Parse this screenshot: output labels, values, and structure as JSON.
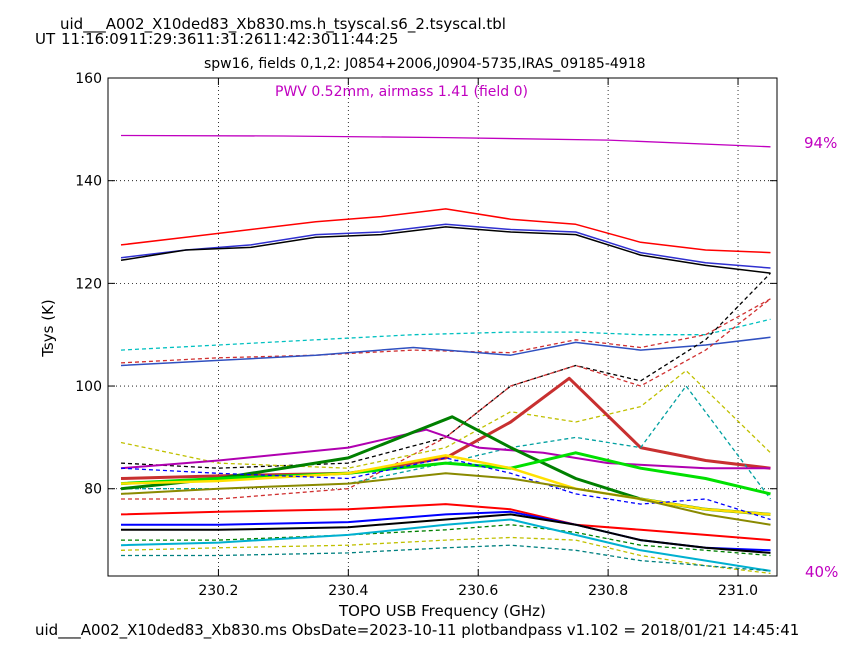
{
  "header": {
    "table_name": "uid___A002_X10ded83_Xb830.ms.h_tsyscal.s6_2.tsyscal.tbl",
    "ut_label": "UT",
    "ut_times": [
      "11:16:09",
      "11:29:36",
      "11:31:26",
      "11:42:30",
      "11:44:25"
    ]
  },
  "footer": {
    "text": "uid___A002_X10ded83_Xb830.ms  ObsDate=2023-10-11   plotbandpass v1.102 = 2018/01/21 14:45:41"
  },
  "chart_data": {
    "type": "line",
    "title": "spw16,  fields 0,1,2: J0854+2006,J0904-5735,IRAS_09185-4918",
    "annotation": "PWV 0.52mm, airmass 1.41 (field 0)",
    "xlabel": "TOPO USB Frequency (GHz)",
    "ylabel": "Tsys (K)",
    "xlim": [
      230.03,
      231.06
    ],
    "ylim": [
      63,
      160
    ],
    "x_ticks": [
      "230.2",
      "230.4",
      "230.6",
      "230.8",
      "231.0"
    ],
    "x_tick_values": [
      230.2,
      230.4,
      230.6,
      230.8,
      231.0
    ],
    "y_ticks": [
      "80",
      "100",
      "120",
      "140",
      "160"
    ],
    "y_tick_values": [
      80,
      100,
      120,
      140,
      160
    ],
    "grid": true,
    "transmission": {
      "color": "#c000c0",
      "top_label": "94%",
      "bottom_label": "40%",
      "x": [
        230.05,
        230.3,
        230.55,
        230.8,
        231.05
      ],
      "y": [
        148.8,
        148.7,
        148.4,
        147.9,
        146.6
      ]
    },
    "series": [
      {
        "color": "#ff0000",
        "style": "solid",
        "width": 1.5,
        "x": [
          230.05,
          230.15,
          230.25,
          230.35,
          230.45,
          230.55,
          230.65,
          230.75,
          230.85,
          230.95,
          231.05
        ],
        "y": [
          127.5,
          129.0,
          130.5,
          132.0,
          133.0,
          134.5,
          132.5,
          131.5,
          128.0,
          126.5,
          126.0
        ]
      },
      {
        "color": "#3030d0",
        "style": "solid",
        "width": 1.5,
        "x": [
          230.05,
          230.15,
          230.25,
          230.35,
          230.45,
          230.55,
          230.65,
          230.75,
          230.85,
          230.95,
          231.05
        ],
        "y": [
          125.0,
          126.5,
          127.5,
          129.5,
          130.0,
          131.5,
          130.5,
          130.0,
          126.0,
          124.0,
          123.0
        ]
      },
      {
        "color": "#000000",
        "style": "solid",
        "width": 1.5,
        "x": [
          230.05,
          230.15,
          230.25,
          230.35,
          230.45,
          230.55,
          230.65,
          230.75,
          230.85,
          230.95,
          231.05
        ],
        "y": [
          124.5,
          126.5,
          127.0,
          129.0,
          129.5,
          131.0,
          130.0,
          129.5,
          125.5,
          123.5,
          122.0
        ]
      },
      {
        "color": "#00c0c0",
        "style": "dashed",
        "width": 1.3,
        "x": [
          230.05,
          230.2,
          230.35,
          230.5,
          230.65,
          230.75,
          230.85,
          230.95,
          231.05
        ],
        "y": [
          107.0,
          108.0,
          109.0,
          110.0,
          110.5,
          110.5,
          110.0,
          110.0,
          113.0
        ]
      },
      {
        "color": "#d03030",
        "style": "dashed",
        "width": 1.3,
        "x": [
          230.05,
          230.2,
          230.35,
          230.5,
          230.65,
          230.75,
          230.85,
          230.95,
          231.05
        ],
        "y": [
          104.5,
          105.5,
          106.0,
          107.0,
          106.5,
          109.0,
          107.5,
          110.0,
          117.0
        ]
      },
      {
        "color": "#3050c0",
        "style": "solid",
        "width": 1.5,
        "x": [
          230.05,
          230.2,
          230.35,
          230.5,
          230.65,
          230.75,
          230.85,
          230.95,
          231.05
        ],
        "y": [
          104.0,
          105.0,
          106.0,
          107.5,
          106.0,
          108.5,
          107.0,
          108.0,
          109.5
        ]
      },
      {
        "color": "#000000",
        "style": "dashed",
        "width": 1.3,
        "x": [
          230.05,
          230.2,
          230.4,
          230.55,
          230.65,
          230.75,
          230.85,
          230.95,
          231.05
        ],
        "y": [
          85.0,
          84.0,
          85.0,
          90.0,
          100.0,
          104.0,
          101.0,
          109.0,
          122.0
        ]
      },
      {
        "color": "#d03030",
        "style": "dashed",
        "width": 1.3,
        "x": [
          230.05,
          230.2,
          230.4,
          230.55,
          230.65,
          230.75,
          230.85,
          230.95,
          231.05
        ],
        "y": [
          78.0,
          78.0,
          80.0,
          90.0,
          100.0,
          104.0,
          100.0,
          107.0,
          117.0
        ]
      },
      {
        "color": "#c0c000",
        "style": "dashed",
        "width": 1.3,
        "x": [
          230.05,
          230.2,
          230.4,
          230.55,
          230.65,
          230.75,
          230.85,
          230.92,
          231.05
        ],
        "y": [
          89.0,
          85.0,
          84.0,
          88.0,
          95.0,
          93.0,
          96.0,
          103.0,
          87.0
        ]
      },
      {
        "color": "#c83030",
        "style": "solid",
        "width": 3.0,
        "x": [
          230.05,
          230.2,
          230.4,
          230.55,
          230.65,
          230.74,
          230.85,
          230.95,
          231.05
        ],
        "y": [
          82.0,
          82.5,
          83.0,
          86.0,
          93.0,
          101.5,
          88.0,
          85.5,
          84.0
        ]
      },
      {
        "color": "#00a0a0",
        "style": "dashed",
        "width": 1.3,
        "x": [
          230.05,
          230.2,
          230.4,
          230.55,
          230.65,
          230.75,
          230.85,
          230.92,
          231.05
        ],
        "y": [
          80.0,
          80.0,
          81.0,
          85.0,
          88.0,
          90.0,
          88.0,
          100.0,
          78.0
        ]
      },
      {
        "color": "#b000b0",
        "style": "solid",
        "width": 2.0,
        "x": [
          230.05,
          230.2,
          230.4,
          230.52,
          230.6,
          230.7,
          230.8,
          230.95,
          231.05
        ],
        "y": [
          84.0,
          85.5,
          88.0,
          91.5,
          88.0,
          87.0,
          85.0,
          84.0,
          84.0
        ]
      },
      {
        "color": "#008000",
        "style": "solid",
        "width": 3.0,
        "x": [
          230.05,
          230.2,
          230.4,
          230.56,
          230.65,
          230.75,
          230.85,
          230.95,
          231.05
        ],
        "y": [
          80.0,
          82.0,
          86.0,
          94.0,
          88.0,
          82.0,
          78.0,
          76.0,
          75.0
        ]
      },
      {
        "color": "#00e000",
        "style": "solid",
        "width": 3.0,
        "x": [
          230.05,
          230.2,
          230.4,
          230.55,
          230.65,
          230.75,
          230.85,
          230.95,
          231.05
        ],
        "y": [
          81.0,
          82.0,
          83.0,
          85.0,
          84.0,
          87.0,
          84.0,
          82.0,
          79.0
        ]
      },
      {
        "color": "#ffe000",
        "style": "solid",
        "width": 2.5,
        "x": [
          230.05,
          230.2,
          230.4,
          230.55,
          230.65,
          230.75,
          230.85,
          230.95,
          231.05
        ],
        "y": [
          81.0,
          81.5,
          83.0,
          86.5,
          84.0,
          80.0,
          78.0,
          76.0,
          75.0
        ]
      },
      {
        "color": "#0000ff",
        "style": "dashed",
        "width": 1.3,
        "x": [
          230.05,
          230.2,
          230.4,
          230.55,
          230.65,
          230.75,
          230.85,
          230.95,
          231.05
        ],
        "y": [
          84.0,
          83.0,
          82.0,
          86.0,
          83.0,
          79.0,
          77.0,
          78.0,
          74.0
        ]
      },
      {
        "color": "#8a8a00",
        "style": "solid",
        "width": 2.0,
        "x": [
          230.05,
          230.2,
          230.4,
          230.55,
          230.65,
          230.75,
          230.85,
          230.95,
          231.05
        ],
        "y": [
          79.0,
          80.0,
          81.0,
          83.0,
          82.0,
          80.0,
          78.0,
          75.0,
          73.0
        ]
      },
      {
        "color": "#ff0000",
        "style": "solid",
        "width": 2.0,
        "x": [
          230.05,
          230.2,
          230.4,
          230.55,
          230.65,
          230.75,
          230.85,
          230.95,
          231.05
        ],
        "y": [
          75.0,
          75.5,
          76.0,
          77.0,
          76.0,
          73.0,
          72.0,
          71.0,
          70.0
        ]
      },
      {
        "color": "#0000ff",
        "style": "solid",
        "width": 2.0,
        "x": [
          230.05,
          230.2,
          230.4,
          230.55,
          230.65,
          230.75,
          230.85,
          230.95,
          231.05
        ],
        "y": [
          73.0,
          73.0,
          73.5,
          75.0,
          75.5,
          73.0,
          70.0,
          68.5,
          68.0
        ]
      },
      {
        "color": "#000000",
        "style": "solid",
        "width": 2.0,
        "x": [
          230.05,
          230.2,
          230.4,
          230.55,
          230.65,
          230.75,
          230.85,
          230.95,
          231.05
        ],
        "y": [
          72.0,
          72.0,
          72.5,
          74.0,
          75.0,
          73.0,
          70.0,
          68.5,
          67.5
        ]
      },
      {
        "color": "#008000",
        "style": "dashed",
        "width": 1.3,
        "x": [
          230.05,
          230.2,
          230.4,
          230.55,
          230.65,
          230.75,
          230.85,
          230.95,
          231.05
        ],
        "y": [
          70.0,
          70.0,
          71.0,
          72.0,
          73.0,
          71.5,
          69.0,
          68.0,
          67.0
        ]
      },
      {
        "color": "#00b0d0",
        "style": "solid",
        "width": 2.0,
        "x": [
          230.05,
          230.2,
          230.4,
          230.55,
          230.65,
          230.75,
          230.85,
          230.95,
          231.05
        ],
        "y": [
          69.0,
          69.5,
          71.0,
          73.0,
          74.0,
          71.0,
          68.0,
          66.0,
          64.0
        ]
      },
      {
        "color": "#c0c000",
        "style": "dashed",
        "width": 1.3,
        "x": [
          230.05,
          230.2,
          230.4,
          230.55,
          230.65,
          230.75,
          230.85,
          230.95,
          231.05
        ],
        "y": [
          68.0,
          68.5,
          69.0,
          70.0,
          70.5,
          70.0,
          67.0,
          65.0,
          63.5
        ]
      },
      {
        "color": "#008080",
        "style": "dashed",
        "width": 1.3,
        "x": [
          230.05,
          230.2,
          230.4,
          230.55,
          230.65,
          230.75,
          230.85,
          230.95,
          231.05
        ],
        "y": [
          67.0,
          67.0,
          67.5,
          68.5,
          69.0,
          68.0,
          66.0,
          65.0,
          64.0
        ]
      }
    ]
  }
}
